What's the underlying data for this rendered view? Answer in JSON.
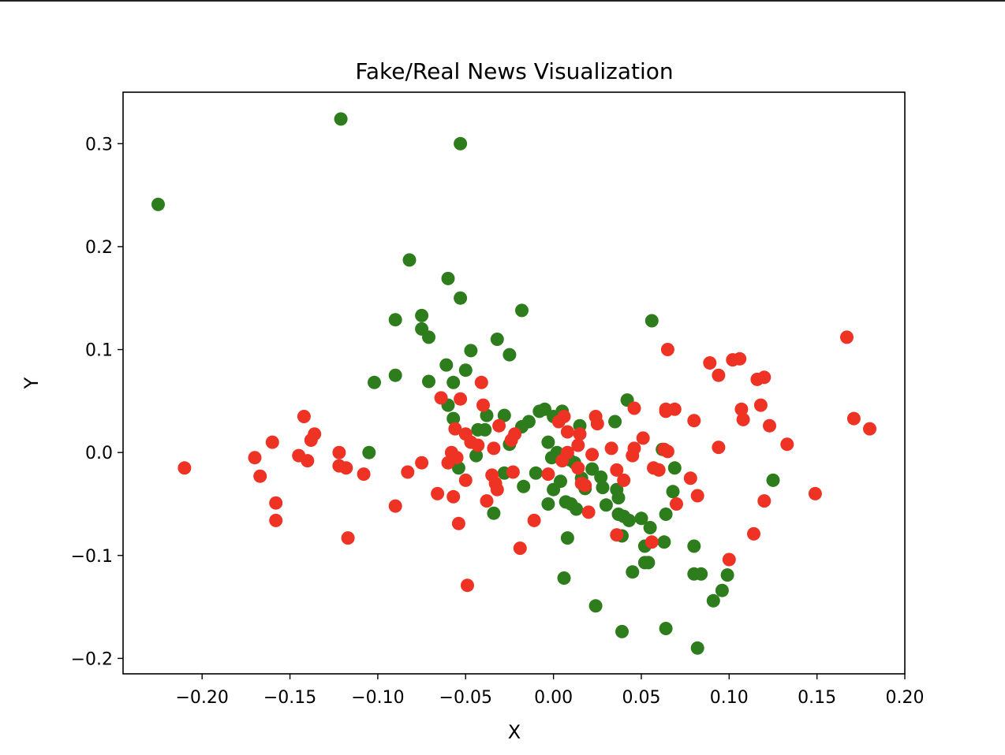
{
  "chart_data": {
    "type": "scatter",
    "title": "Fake/Real News Visualization",
    "xlabel": "X",
    "ylabel": "Y",
    "xlim": [
      -0.245,
      0.2
    ],
    "ylim": [
      -0.215,
      0.35
    ],
    "x_ticks": [
      -0.2,
      -0.15,
      -0.1,
      -0.05,
      0.0,
      0.05,
      0.1,
      0.15,
      0.2
    ],
    "x_tick_labels": [
      "−0.20",
      "−0.15",
      "−0.10",
      "−0.05",
      "0.00",
      "0.05",
      "0.10",
      "0.15",
      "0.20"
    ],
    "y_ticks": [
      -0.2,
      -0.1,
      0.0,
      0.1,
      0.2,
      0.3
    ],
    "y_tick_labels": [
      "−0.2",
      "−0.1",
      "0.0",
      "0.1",
      "0.2",
      "0.3"
    ],
    "grid": false,
    "colors": {
      "green": "#2d7d1c",
      "red": "#ee3224"
    },
    "series": [
      {
        "color": "#2d7d1c",
        "points": [
          [
            -0.121,
            0.324
          ],
          [
            -0.053,
            0.3
          ],
          [
            -0.225,
            0.241
          ],
          [
            -0.082,
            0.187
          ],
          [
            -0.06,
            0.169
          ],
          [
            -0.053,
            0.15
          ],
          [
            -0.018,
            0.138
          ],
          [
            -0.075,
            0.133
          ],
          [
            -0.09,
            0.129
          ],
          [
            0.056,
            0.128
          ],
          [
            -0.075,
            0.12
          ],
          [
            -0.071,
            0.112
          ],
          [
            -0.032,
            0.11
          ],
          [
            -0.047,
            0.099
          ],
          [
            -0.025,
            0.095
          ],
          [
            -0.061,
            0.085
          ],
          [
            -0.05,
            0.08
          ],
          [
            -0.09,
            0.075
          ],
          [
            -0.071,
            0.069
          ],
          [
            -0.102,
            0.068
          ],
          [
            -0.057,
            0.068
          ],
          [
            0.042,
            0.051
          ],
          [
            -0.06,
            0.046
          ],
          [
            -0.038,
            0.036
          ],
          [
            -0.028,
            0.036
          ],
          [
            -0.057,
            0.033
          ],
          [
            -0.008,
            0.04
          ],
          [
            -0.005,
            0.042
          ],
          [
            0.005,
            0.04
          ],
          [
            0.0,
            0.035
          ],
          [
            0.035,
            0.03
          ],
          [
            0.015,
            0.026
          ],
          [
            -0.014,
            0.03
          ],
          [
            -0.018,
            0.025
          ],
          [
            -0.043,
            0.022
          ],
          [
            -0.039,
            0.022
          ],
          [
            -0.003,
            0.01
          ],
          [
            -0.025,
            0.008
          ],
          [
            -0.105,
            0.0
          ],
          [
            -0.044,
            -0.003
          ],
          [
            -0.001,
            -0.005
          ],
          [
            0.002,
            0.0
          ],
          [
            0.062,
            0.003
          ],
          [
            0.009,
            -0.007
          ],
          [
            0.012,
            -0.01
          ],
          [
            0.022,
            -0.016
          ],
          [
            0.027,
            -0.024
          ],
          [
            0.069,
            -0.015
          ],
          [
            -0.054,
            -0.015
          ],
          [
            -0.028,
            -0.02
          ],
          [
            -0.01,
            -0.02
          ],
          [
            0.004,
            -0.028
          ],
          [
            0.016,
            -0.025
          ],
          [
            0.018,
            -0.035
          ],
          [
            0.028,
            -0.034
          ],
          [
            -0.017,
            -0.033
          ],
          [
            0.0,
            -0.036
          ],
          [
            0.036,
            -0.036
          ],
          [
            0.037,
            -0.044
          ],
          [
            0.068,
            -0.038
          ],
          [
            -0.003,
            -0.05
          ],
          [
            0.007,
            -0.048
          ],
          [
            0.01,
            -0.05
          ],
          [
            0.013,
            -0.055
          ],
          [
            0.03,
            -0.051
          ],
          [
            -0.034,
            -0.059
          ],
          [
            0.037,
            -0.06
          ],
          [
            0.04,
            -0.062
          ],
          [
            0.043,
            -0.066
          ],
          [
            0.05,
            -0.064
          ],
          [
            0.055,
            -0.073
          ],
          [
            0.064,
            -0.06
          ],
          [
            0.008,
            -0.083
          ],
          [
            0.039,
            -0.081
          ],
          [
            0.052,
            -0.091
          ],
          [
            0.063,
            -0.087
          ],
          [
            0.08,
            -0.091
          ],
          [
            0.052,
            -0.107
          ],
          [
            0.054,
            -0.107
          ],
          [
            0.045,
            -0.116
          ],
          [
            0.08,
            -0.118
          ],
          [
            0.084,
            -0.118
          ],
          [
            0.099,
            -0.119
          ],
          [
            0.006,
            -0.122
          ],
          [
            0.096,
            -0.134
          ],
          [
            0.091,
            -0.144
          ],
          [
            0.024,
            -0.149
          ],
          [
            0.039,
            -0.174
          ],
          [
            0.064,
            -0.171
          ],
          [
            0.082,
            -0.19
          ],
          [
            0.125,
            -0.027
          ]
        ]
      },
      {
        "color": "#ee3224",
        "points": [
          [
            0.167,
            0.112
          ],
          [
            0.065,
            0.1
          ],
          [
            0.106,
            0.091
          ],
          [
            0.102,
            0.09
          ],
          [
            0.089,
            0.087
          ],
          [
            0.094,
            0.075
          ],
          [
            0.12,
            0.073
          ],
          [
            0.116,
            0.071
          ],
          [
            -0.041,
            0.068
          ],
          [
            -0.064,
            0.053
          ],
          [
            -0.053,
            0.052
          ],
          [
            0.118,
            0.046
          ],
          [
            -0.04,
            0.046
          ],
          [
            0.046,
            0.043
          ],
          [
            0.064,
            0.042
          ],
          [
            0.107,
            0.042
          ],
          [
            0.069,
            0.042
          ],
          [
            0.064,
            0.04
          ],
          [
            0.006,
            0.035
          ],
          [
            -0.142,
            0.035
          ],
          [
            0.024,
            0.035
          ],
          [
            0.171,
            0.033
          ],
          [
            0.108,
            0.032
          ],
          [
            0.003,
            0.03
          ],
          [
            0.08,
            0.031
          ],
          [
            0.025,
            0.028
          ],
          [
            0.123,
            0.026
          ],
          [
            -0.031,
            0.026
          ],
          [
            0.18,
            0.023
          ],
          [
            -0.056,
            0.023
          ],
          [
            0.008,
            0.02
          ],
          [
            -0.05,
            0.018
          ],
          [
            -0.022,
            0.018
          ],
          [
            0.015,
            0.018
          ],
          [
            -0.136,
            0.018
          ],
          [
            -0.138,
            0.012
          ],
          [
            -0.024,
            0.012
          ],
          [
            0.051,
            0.014
          ],
          [
            -0.16,
            0.01
          ],
          [
            -0.047,
            0.01
          ],
          [
            -0.043,
            0.007
          ],
          [
            0.014,
            0.007
          ],
          [
            0.133,
            0.008
          ],
          [
            0.094,
            0.005
          ],
          [
            0.033,
            0.004
          ],
          [
            0.046,
            0.004
          ],
          [
            -0.034,
            0.004
          ],
          [
            0.063,
            0.003
          ],
          [
            0.065,
            0.001
          ],
          [
            -0.058,
            0.0
          ],
          [
            -0.122,
            0.0
          ],
          [
            0.008,
            0.0
          ],
          [
            0.022,
            -0.002
          ],
          [
            0.045,
            -0.003
          ],
          [
            -0.145,
            -0.003
          ],
          [
            -0.17,
            -0.005
          ],
          [
            -0.055,
            -0.005
          ],
          [
            -0.06,
            -0.01
          ],
          [
            0.005,
            -0.008
          ],
          [
            -0.14,
            -0.008
          ],
          [
            -0.075,
            -0.01
          ],
          [
            -0.122,
            -0.013
          ],
          [
            0.014,
            -0.015
          ],
          [
            -0.118,
            -0.015
          ],
          [
            0.057,
            -0.015
          ],
          [
            -0.21,
            -0.015
          ],
          [
            0.06,
            -0.017
          ],
          [
            0.036,
            -0.017
          ],
          [
            -0.083,
            -0.019
          ],
          [
            -0.023,
            -0.019
          ],
          [
            -0.108,
            -0.021
          ],
          [
            -0.003,
            -0.021
          ],
          [
            -0.035,
            -0.022
          ],
          [
            -0.167,
            -0.023
          ],
          [
            0.078,
            -0.025
          ],
          [
            0.04,
            -0.027
          ],
          [
            -0.05,
            -0.027
          ],
          [
            0.016,
            -0.03
          ],
          [
            -0.033,
            -0.03
          ],
          [
            0.018,
            -0.032
          ],
          [
            -0.032,
            -0.036
          ],
          [
            -0.066,
            -0.04
          ],
          [
            0.149,
            -0.04
          ],
          [
            0.082,
            -0.042
          ],
          [
            -0.057,
            -0.043
          ],
          [
            -0.038,
            -0.047
          ],
          [
            0.12,
            -0.047
          ],
          [
            -0.158,
            -0.049
          ],
          [
            0.07,
            -0.05
          ],
          [
            -0.09,
            -0.052
          ],
          [
            0.02,
            -0.058
          ],
          [
            -0.158,
            -0.066
          ],
          [
            -0.011,
            -0.066
          ],
          [
            -0.054,
            -0.069
          ],
          [
            0.114,
            -0.079
          ],
          [
            0.036,
            -0.08
          ],
          [
            -0.117,
            -0.083
          ],
          [
            0.056,
            -0.087
          ],
          [
            -0.019,
            -0.093
          ],
          [
            0.1,
            -0.104
          ],
          [
            -0.049,
            -0.129
          ]
        ]
      }
    ]
  }
}
